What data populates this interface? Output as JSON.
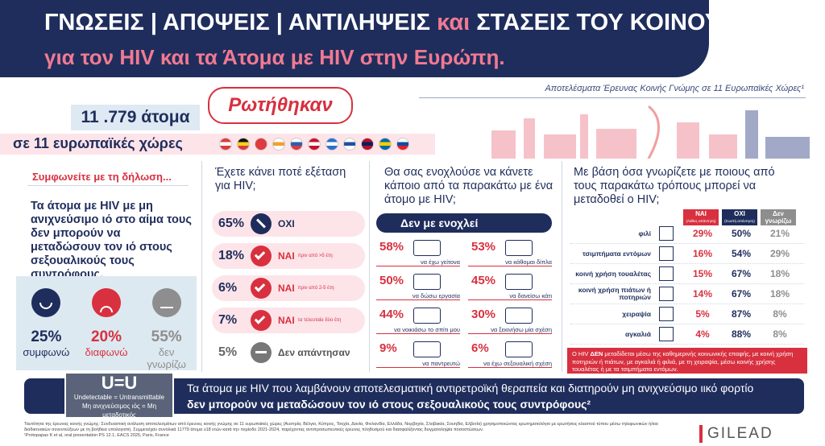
{
  "header": {
    "title_line1": [
      "ΓΝΩΣΕΙΣ | ΑΠΟΨΕΙΣ | ΑΝΤΙΛΗΨΕΙΣ",
      "και",
      "ΣΤΑΣΕΙΣ ΤΟΥ ΚΟΙΝΟΥ"
    ],
    "title_line2": "για τον HIV και τα Άτομα με HIV στην Ευρώπη.",
    "subtitle": "Αποτελέσματα Έρευνας Κοινής Γνώμης σε 11 Ευρωπαϊκές Χώρες¹"
  },
  "survey": {
    "count": "11 .779 άτομα",
    "asked": "Ρωτήθηκαν",
    "countries": "σε 11 ευρωπαϊκές χώρες"
  },
  "agree": {
    "heading": "Συμφωνείτε με τη δήλωση...",
    "statement": "Τα άτομα με HIV με μη ανιχνεύσιμο ιό στο αίμα τους δεν μπορούν να μεταδώσουν τον ιό στους σεξουαλικούς τους συντρόφους.",
    "answers": [
      {
        "pct": "25%",
        "label": "συμφωνώ"
      },
      {
        "pct": "20%",
        "label": "διαφωνώ"
      },
      {
        "pct": "55%",
        "label": "δεν γνωρίζω"
      }
    ]
  },
  "testing": {
    "question": "Έχετε κάνει ποτέ εξέταση για HIV;",
    "rows": [
      {
        "pct": "65%",
        "label": "ΟΧΙ"
      },
      {
        "pct": "18%",
        "label": "ΝΑΙ",
        "detail": "πριν από >5 έτη"
      },
      {
        "pct": "6%",
        "label": "ΝΑΙ",
        "detail": "πριν από 2-5 έτη"
      },
      {
        "pct": "7%",
        "label": "ΝΑΙ",
        "detail": "τα τελευταία δύο έτη"
      },
      {
        "pct": "5%",
        "label": "Δεν απάντησαν"
      }
    ]
  },
  "bother": {
    "question": "Θα σας ενοχλούσε να κάνετε κάποιο από τα παρακάτω με ένα άτομο με HIV;",
    "banner": "Δεν με ενοχλεί",
    "items": [
      {
        "pct": "58%",
        "label": "να έχω γείτονα"
      },
      {
        "pct": "53%",
        "label": "να κάθομαι δίπλα"
      },
      {
        "pct": "50%",
        "label": "να δώσω εργασία"
      },
      {
        "pct": "45%",
        "label": "να δανείσω κάτι"
      },
      {
        "pct": "44%",
        "label": "να νοικιάσω το σπίτι μου"
      },
      {
        "pct": "30%",
        "label": "να ξεκινήσω μία σχέση"
      },
      {
        "pct": "9%",
        "label": "να παντρευτώ"
      },
      {
        "pct": "6%",
        "label": "να έχω σεξουαλική σχέση"
      }
    ]
  },
  "transmission": {
    "question": "Με βάση όσα γνωρίζετε με ποιους από τους παρακάτω τρόπους μπορεί να μεταδοθεί ο HIV;",
    "columns": [
      {
        "label": "ΝΑΙ",
        "note": "(Λάθος απάντηση)"
      },
      {
        "label": "ΟΧΙ",
        "note": "(Σωστή απάντηση)"
      },
      {
        "label": "Δεν γνωρίζω"
      }
    ],
    "rows": [
      {
        "label": "φιλί",
        "values": [
          "29%",
          "50%",
          "21%"
        ]
      },
      {
        "label": "τσιμπήματα εντόμων",
        "values": [
          "16%",
          "54%",
          "29%"
        ]
      },
      {
        "label": "κοινή χρήση τουαλέτας",
        "values": [
          "15%",
          "67%",
          "18%"
        ]
      },
      {
        "label": "κοινή χρήση πιάτων ή ποτηριών",
        "values": [
          "14%",
          "67%",
          "18%"
        ]
      },
      {
        "label": "χειραψία",
        "values": [
          "5%",
          "87%",
          "8%"
        ]
      },
      {
        "label": "αγκαλιά",
        "values": [
          "4%",
          "88%",
          "8%"
        ]
      }
    ],
    "note": [
      "Ο HIV",
      "ΔΕΝ",
      "μεταδίδεται μέσω της καθημερινής κοινωνικής επαφής, με κοινή χρήση ποτηριών ή πιάτων, με αγκαλιά ή φιλιά, με τη χειραψία, μέσω κοινής χρήσης τουαλέτας ή με τα τσιμπήματα εντόμων."
    ]
  },
  "uu": {
    "logo": "U=U",
    "line1": "Undetectable = Untransmittable",
    "line2": "Μη ανιχνεύσιμος ιός = Μη μεταδοτικός",
    "text1": "Τα άτομα με HIV που λαμβάνουν αποτελεσματική αντιρετροϊκή θεραπεία και διατηρούν μη ανιχνεύσιμο ιικό φορτίο",
    "text2": "δεν μπορούν να μεταδώσουν τον ιό στους σεξουαλικούς τους συντρόφους²"
  },
  "footer": {
    "notes": [
      "Ταυτότητα της έρευνας κοινής γνώμης: Συνδυαστική ανάλυση αποτελεσμάτων από έρευνες κοινής γνώμης σε 11 ευρωπαϊκές χώρες (Αυστρία, Βέλγιο, Κύπρος, Τσεχία, Δανία, Φινλανδία, Ελλάδα, Νορβηγία, Σλοβακία, Σουηδία, Ελβετία) χρησιμοποιώντας ερωτηματολόγιο με ερωτήσεις κλειστού τύπου μέσω τηλεφωνικών ή/και διαδικτυακών συνεντεύξεων με τη βοήθεια υπολογιστή. Συμμετείχαν συνολικά 11779 άτομα ≥18 ετών κατά την περίοδο 2021-2024, παρέχοντας αντιπροσωπευτικές έρευνες πληθυσμού και διασφαλίζοντας δειγματοληψία ποσοστώσεων.",
      "¹Protopapas K et al, oral presentation PS 12.1, EACS 2025, Paris, France"
    ],
    "logo": "GILEAD"
  }
}
